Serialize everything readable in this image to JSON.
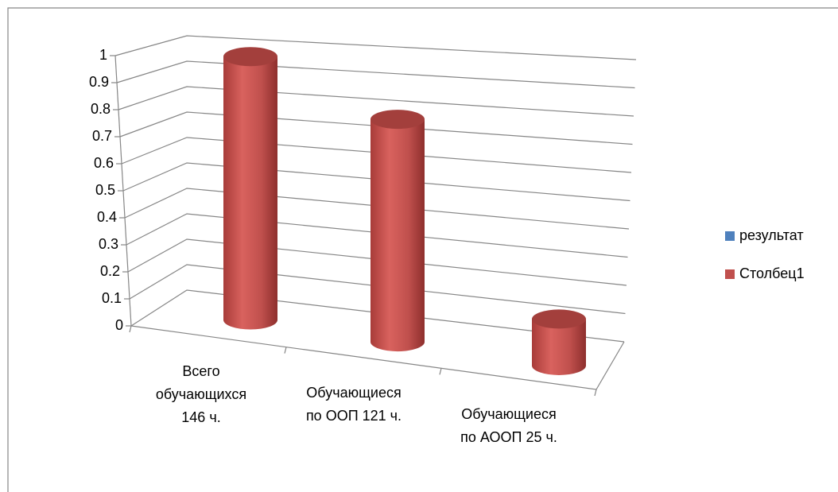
{
  "chart_data": {
    "type": "bar3d-cylinder",
    "categories": [
      "Всего\nобучающихся\n146 ч.",
      "Обучающиеся\nпо ООП  121 ч.",
      "Обучающиеся\nпо АООП  25 ч."
    ],
    "series": [
      {
        "name": "результат",
        "color": "#4f81bd",
        "values": [
          null,
          null,
          null
        ]
      },
      {
        "name": "Столбец1",
        "color": "#c0504d",
        "values": [
          1,
          0.83,
          0.17
        ]
      }
    ],
    "ylim": [
      0,
      1
    ],
    "yticks": [
      0,
      0.1,
      0.2,
      0.3,
      0.4,
      0.5,
      0.6,
      0.7,
      0.8,
      0.9,
      1
    ],
    "grid": true,
    "legend": "right"
  }
}
